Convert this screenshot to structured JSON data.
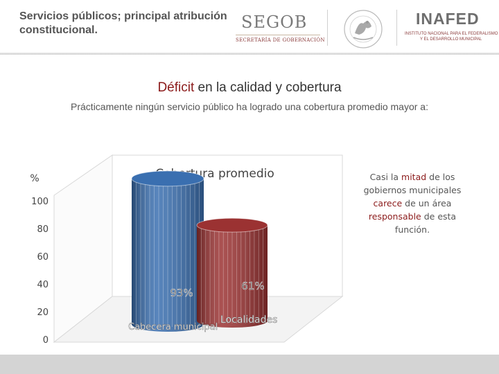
{
  "header": {
    "title": "Servicios públicos; principal atribución constitucional.",
    "segob_logo": "SEGOB",
    "segob_sub": "SECRETARÍA DE GOBERNACIÓN",
    "seal_lettering": "ESTADOS UNIDOS MEXICANOS",
    "inafed_logo": "INAFED",
    "inafed_sub1": "INSTITUTO NACIONAL PARA EL FEDERALISMO",
    "inafed_sub2": "Y EL DESARROLLO MUNICIPAL"
  },
  "heading": {
    "accent": "Déficit",
    "rest": " en la calidad  y cobertura"
  },
  "subtitle": "Prácticamente ningún servicio público ha logrado una cobertura promedio mayor a:",
  "note": {
    "p1": "Casi la ",
    "p2": "mitad",
    "p3": " de los gobiernos municipales ",
    "p4": "carece",
    "p5": " de un área ",
    "p6": "responsable",
    "p7": " de esta función."
  },
  "colors": {
    "accent_red": "#8b1a1a",
    "bar_blue": "#3a6fb0",
    "bar_red": "#9b3232"
  },
  "chart_data": {
    "type": "bar",
    "title": "Cobertura promedio",
    "ylabel": "%",
    "ylim": [
      0,
      100
    ],
    "yticks": [
      0,
      20,
      40,
      60,
      80,
      100
    ],
    "categories": [
      "Cabecera municipal",
      "Localidades"
    ],
    "values": [
      93,
      61
    ],
    "data_labels": [
      "93%",
      "61%"
    ],
    "colors": [
      "#3a6fb0",
      "#9b3232"
    ],
    "style": "3d-cylinder"
  }
}
